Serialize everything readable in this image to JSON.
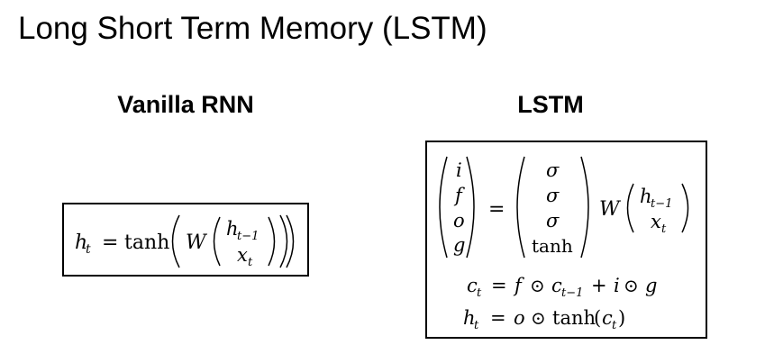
{
  "slide": {
    "title": "Long Short Term Memory (LSTM)"
  },
  "rnn": {
    "heading": "Vanilla RNN",
    "lhs_var": "h",
    "lhs_sub": "t",
    "equals": "=",
    "func": "tanh",
    "weight": "W",
    "vec_top_var": "h",
    "vec_top_sub": "t−1",
    "vec_bot_var": "x",
    "vec_bot_sub": "t"
  },
  "lstm": {
    "heading": "LSTM",
    "gates": [
      "i",
      "f",
      "o",
      "g"
    ],
    "equals": "=",
    "activations": [
      "σ",
      "σ",
      "σ",
      "tanh"
    ],
    "weight": "W",
    "vec_top_var": "h",
    "vec_top_sub": "t−1",
    "vec_bot_var": "x",
    "vec_bot_sub": "t",
    "cell_eq": {
      "lhs_var": "c",
      "lhs_sub": "t",
      "equals": "=",
      "f": "f",
      "odot": "⊙",
      "c_var": "c",
      "c_sub": "t−1",
      "plus": "+",
      "i": "i",
      "g": "g"
    },
    "hidden_eq": {
      "lhs_var": "h",
      "lhs_sub": "t",
      "equals": "=",
      "o": "o",
      "odot": "⊙",
      "func": "tanh",
      "open": "(",
      "c_var": "c",
      "c_sub": "t",
      "close": ")"
    }
  }
}
